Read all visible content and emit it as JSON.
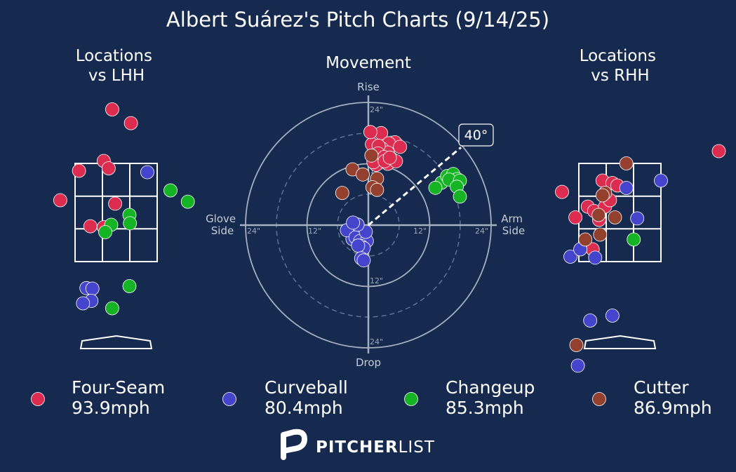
{
  "title": "Albert Suárez's Pitch Charts (9/14/25)",
  "brand": {
    "bold": "PITCHER",
    "light": "LIST",
    "logo_icon": "pitcherlist-p-icon"
  },
  "colors": {
    "background": "#152a4e",
    "four_seam": "#dc2c4f",
    "curveball": "#4444cc",
    "changeup": "#14b425",
    "cutter": "#94402f"
  },
  "pitch_types": [
    {
      "key": "four_seam",
      "name": "Four-Seam",
      "speed": "93.9mph",
      "color": "#dc2c4f"
    },
    {
      "key": "curveball",
      "name": "Curveball",
      "speed": "80.4mph",
      "color": "#4444cc"
    },
    {
      "key": "changeup",
      "name": "Changeup",
      "speed": "85.3mph",
      "color": "#14b425"
    },
    {
      "key": "cutter",
      "name": "Cutter",
      "speed": "86.9mph",
      "color": "#94402f"
    }
  ],
  "chart_data": [
    {
      "type": "scatter",
      "title": "Locations\nvs LHH",
      "xlim": [
        -2.5,
        2.5
      ],
      "ylim": [
        -1.0,
        5.5
      ],
      "zone": {
        "x": [
          -0.83,
          0.83
        ],
        "y": [
          1.5,
          3.5
        ]
      },
      "series": [
        {
          "name": "Four-Seam",
          "points": [
            [
              -0.08,
              4.6
            ],
            [
              0.3,
              4.32
            ],
            [
              -0.25,
              3.55
            ],
            [
              -0.15,
              3.4
            ],
            [
              -0.75,
              3.35
            ],
            [
              -1.13,
              2.75
            ],
            [
              -0.02,
              2.68
            ],
            [
              -0.52,
              2.22
            ],
            [
              -0.25,
              2.2
            ]
          ]
        },
        {
          "name": "Curveball",
          "points": [
            [
              0.63,
              3.32
            ],
            [
              -0.6,
              0.96
            ],
            [
              -0.48,
              0.95
            ],
            [
              -0.5,
              0.7
            ],
            [
              -0.67,
              0.65
            ]
          ]
        },
        {
          "name": "Changeup",
          "points": [
            [
              1.1,
              2.95
            ],
            [
              1.45,
              2.72
            ],
            [
              0.27,
              2.45
            ],
            [
              0.28,
              2.28
            ],
            [
              -0.1,
              2.25
            ],
            [
              -0.22,
              2.1
            ],
            [
              0.27,
              1.0
            ],
            [
              -0.08,
              0.55
            ]
          ]
        }
      ]
    },
    {
      "type": "scatter",
      "title": "Movement",
      "labels": {
        "top": "Rise",
        "bottom": "Drop",
        "left": "Glove\nSide",
        "right": "Arm\nSide"
      },
      "rings": [
        12,
        24
      ],
      "ring_labels": [
        "12\"",
        "24\""
      ],
      "arm_angle_deg": 40,
      "arm_angle_label": "40°",
      "xlim": [
        -24,
        24
      ],
      "ylim": [
        -24,
        24
      ],
      "series": [
        {
          "name": "Four-Seam",
          "points": [
            [
              2.5,
              18
            ],
            [
              5.2,
              16.2
            ],
            [
              4.0,
              16.0
            ],
            [
              2.6,
              15.0
            ],
            [
              3.8,
              14.2
            ],
            [
              4.5,
              13.0
            ],
            [
              3.8,
              12.0
            ],
            [
              6.2,
              15.3
            ],
            [
              5.4,
              12.5
            ],
            [
              2.1,
              13.3
            ],
            [
              1.5,
              11.8
            ],
            [
              0.7,
              15.8
            ],
            [
              0.4,
              18.2
            ],
            [
              2.0,
              15.5
            ],
            [
              1.9,
              14.0
            ],
            [
              1.0,
              12.3
            ],
            [
              3.1,
              13.3
            ],
            [
              3.2,
              12.5
            ],
            [
              4.2,
              13.2
            ]
          ]
        },
        {
          "name": "Curveball",
          "points": [
            [
              -3.1,
              -2.7
            ],
            [
              -4.2,
              -1.0
            ],
            [
              -2.5,
              -2.4
            ],
            [
              -1.6,
              -3.1
            ],
            [
              -0.3,
              -3.1
            ],
            [
              -0.5,
              -1.3
            ],
            [
              -1.4,
              -4.1
            ],
            [
              -0.9,
              -4.5
            ],
            [
              -2.0,
              -4.0
            ],
            [
              -1.4,
              -6.5
            ],
            [
              -0.9,
              -6.9
            ],
            [
              -2.1,
              0.1
            ],
            [
              -3.0,
              0.5
            ]
          ]
        },
        {
          "name": "Changeup",
          "points": [
            [
              14.3,
              8.3
            ],
            [
              15.4,
              9.6
            ],
            [
              16.6,
              10.0
            ],
            [
              17.4,
              9.0
            ],
            [
              15.8,
              8.9
            ],
            [
              17.9,
              8.7
            ],
            [
              17.3,
              7.5
            ],
            [
              13.1,
              7.3
            ],
            [
              17.9,
              5.6
            ]
          ]
        },
        {
          "name": "Cutter",
          "points": [
            [
              0.6,
              13.6
            ],
            [
              -3.1,
              10.9
            ],
            [
              -1.1,
              9.9
            ],
            [
              1.7,
              9.1
            ],
            [
              0.8,
              7.4
            ],
            [
              1.7,
              6.9
            ],
            [
              -5.1,
              6.3
            ]
          ]
        }
      ]
    },
    {
      "type": "scatter",
      "title": "Locations\nvs RHH",
      "xlim": [
        -2.5,
        2.5
      ],
      "ylim": [
        -1.0,
        5.5
      ],
      "zone": {
        "x": [
          -0.83,
          0.83
        ],
        "y": [
          1.5,
          3.5
        ]
      },
      "series": [
        {
          "name": "Four-Seam",
          "points": [
            [
              2.0,
              3.75
            ],
            [
              2.63,
              3.55
            ],
            [
              -1.17,
              2.92
            ],
            [
              -0.35,
              3.15
            ],
            [
              -0.15,
              3.1
            ],
            [
              -0.05,
              3.05
            ],
            [
              -0.65,
              2.62
            ],
            [
              -0.52,
              2.53
            ],
            [
              -0.3,
              2.62
            ],
            [
              -0.2,
              2.75
            ],
            [
              -0.42,
              2.35
            ],
            [
              -0.9,
              2.4
            ],
            [
              -0.55,
              1.75
            ]
          ]
        },
        {
          "name": "Curveball",
          "points": [
            [
              0.13,
              3.0
            ],
            [
              0.83,
              3.15
            ],
            [
              0.35,
              2.38
            ],
            [
              -0.5,
              1.58
            ],
            [
              -1.0,
              1.6
            ],
            [
              -0.8,
              1.75
            ],
            [
              -0.6,
              0.3
            ],
            [
              -0.15,
              0.4
            ],
            [
              -0.85,
              -0.62
            ]
          ]
        },
        {
          "name": "Changeup",
          "points": [
            [
              0.28,
              1.95
            ]
          ]
        },
        {
          "name": "Cutter",
          "points": [
            [
              0.13,
              3.5
            ],
            [
              -0.3,
              2.9
            ],
            [
              -0.35,
              2.85
            ],
            [
              -0.43,
              2.45
            ],
            [
              -0.1,
              2.4
            ],
            [
              -0.4,
              2.05
            ],
            [
              -0.7,
              1.95
            ],
            [
              -0.88,
              -0.2
            ]
          ]
        }
      ]
    }
  ]
}
